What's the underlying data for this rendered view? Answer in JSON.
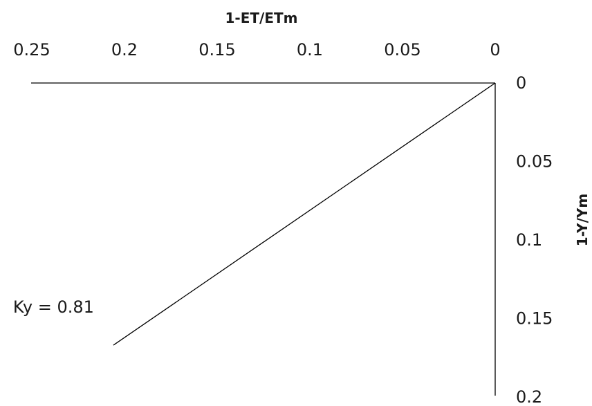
{
  "chart_data": {
    "type": "line",
    "title": "",
    "xlabel": "1-ET/ETm",
    "ylabel": "1-Y/Ym",
    "xlim": [
      0,
      0.25
    ],
    "ylim": [
      0,
      0.2
    ],
    "x_axis_position": "top",
    "y_axis_position": "right",
    "x_reversed": true,
    "y_reversed": true,
    "grid": false,
    "xticks": [
      "0.25",
      "0.2",
      "0.15",
      "0.1",
      "0.05",
      "0"
    ],
    "yticks": [
      "0",
      "0.05",
      "0.1",
      "0.15",
      "0.2"
    ],
    "series": [
      {
        "x": [
          0,
          0.206
        ],
        "y": [
          0,
          0.167
        ],
        "color": "#000000"
      }
    ],
    "annotations": [
      {
        "text": "Ky = 0.81",
        "x": 0.206,
        "y": 0.14
      }
    ]
  }
}
